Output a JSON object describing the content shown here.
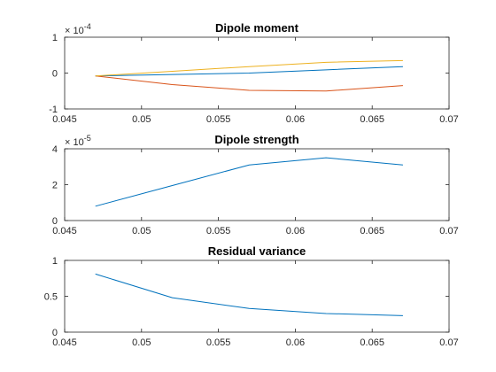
{
  "chart_data": [
    {
      "type": "line",
      "title": "Dipole moment",
      "xlabel": "",
      "ylabel": "",
      "xlim": [
        0.045,
        0.07
      ],
      "ylim": [
        -1,
        1
      ],
      "y_exponent_label": "× 10^{-4}",
      "x_ticks": [
        "0.045",
        "0.05",
        "0.055",
        "0.06",
        "0.065",
        "0.07"
      ],
      "y_ticks": [
        "-1",
        "0",
        "1"
      ],
      "x_tick_values": [
        0.045,
        0.05,
        0.055,
        0.06,
        0.065,
        0.07
      ],
      "y_tick_values": [
        -1,
        0,
        1
      ],
      "grid": false,
      "x": [
        0.047,
        0.052,
        0.057,
        0.062,
        0.067
      ],
      "series": [
        {
          "values": [
            -0.08,
            -0.04,
            0.0,
            0.09,
            0.18
          ],
          "color": "#0072BD"
        },
        {
          "values": [
            -0.08,
            -0.32,
            -0.48,
            -0.5,
            -0.35
          ],
          "color": "#D95319"
        },
        {
          "values": [
            -0.08,
            0.05,
            0.18,
            0.3,
            0.35
          ],
          "color": "#EDB120"
        }
      ]
    },
    {
      "type": "line",
      "title": "Dipole strength",
      "xlabel": "",
      "ylabel": "",
      "xlim": [
        0.045,
        0.07
      ],
      "ylim": [
        0,
        4
      ],
      "y_exponent_label": "× 10^{-5}",
      "x_ticks": [
        "0.045",
        "0.05",
        "0.055",
        "0.06",
        "0.065",
        "0.07"
      ],
      "y_ticks": [
        "0",
        "2",
        "4"
      ],
      "x_tick_values": [
        0.045,
        0.05,
        0.055,
        0.06,
        0.065,
        0.07
      ],
      "y_tick_values": [
        0,
        2,
        4
      ],
      "grid": false,
      "x": [
        0.047,
        0.052,
        0.057,
        0.062,
        0.067
      ],
      "series": [
        {
          "values": [
            0.8,
            1.95,
            3.1,
            3.5,
            3.1
          ],
          "color": "#0072BD"
        }
      ]
    },
    {
      "type": "line",
      "title": "Residual variance",
      "xlabel": "",
      "ylabel": "",
      "xlim": [
        0.045,
        0.07
      ],
      "ylim": [
        0,
        1
      ],
      "y_exponent_label": "",
      "x_ticks": [
        "0.045",
        "0.05",
        "0.055",
        "0.06",
        "0.065",
        "0.07"
      ],
      "y_ticks": [
        "0",
        "0.5",
        "1"
      ],
      "x_tick_values": [
        0.045,
        0.05,
        0.055,
        0.06,
        0.065,
        0.07
      ],
      "y_tick_values": [
        0,
        0.5,
        1
      ],
      "grid": false,
      "x": [
        0.047,
        0.052,
        0.057,
        0.062,
        0.067
      ],
      "series": [
        {
          "values": [
            0.81,
            0.48,
            0.33,
            0.26,
            0.23
          ],
          "color": "#0072BD"
        }
      ]
    }
  ]
}
